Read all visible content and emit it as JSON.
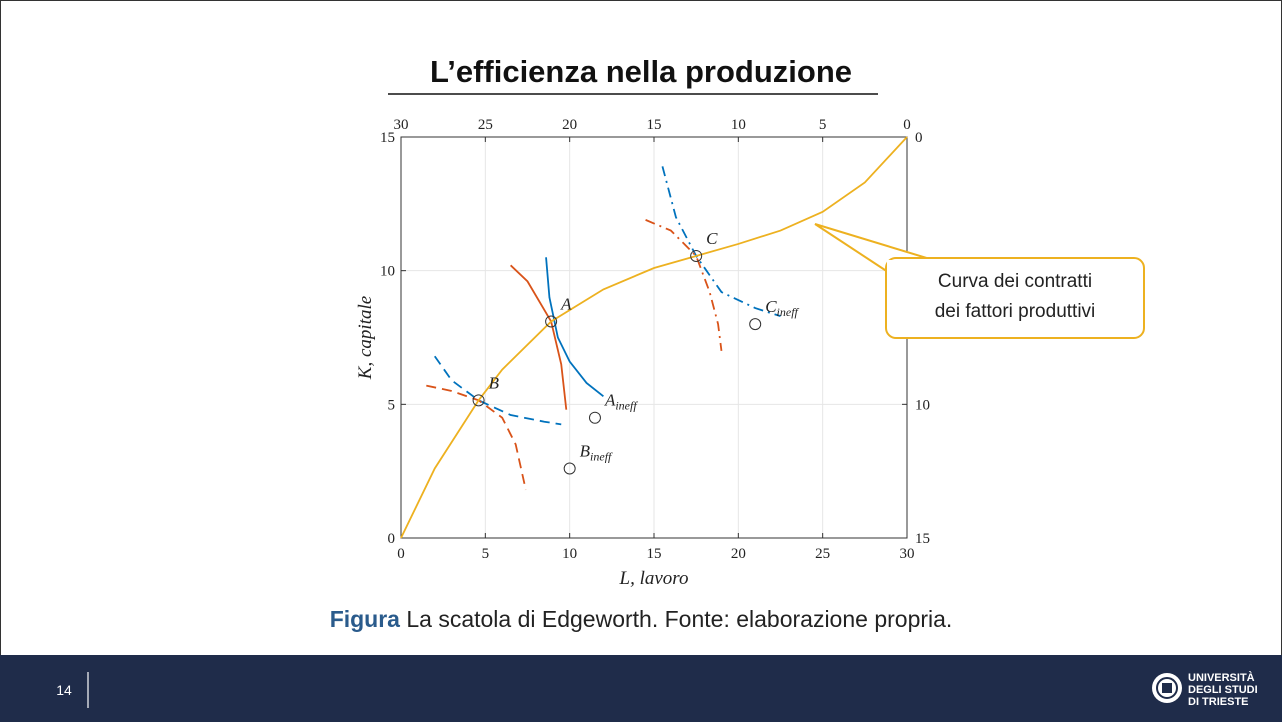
{
  "title": "L’efficienza nella produzione",
  "chart_data": {
    "type": "edgeworth",
    "xlabel": "L, lavoro",
    "ylabel": "K, capitale",
    "xlim": [
      0,
      30
    ],
    "xticks": [
      0,
      5,
      10,
      15,
      20,
      25,
      30
    ],
    "ylim": [
      0,
      15
    ],
    "yticks": [
      0,
      5,
      10,
      15
    ],
    "x2lim": [
      30,
      0
    ],
    "x2ticks": [
      30,
      25,
      20,
      15,
      10,
      5,
      0
    ],
    "y2lim": [
      15,
      0
    ],
    "y2ticks": [
      0,
      5,
      10,
      15
    ],
    "grid": true,
    "contract_curve": {
      "color": "#EDB120",
      "x": [
        0,
        2,
        4.6,
        6,
        8.9,
        12,
        15,
        17.5,
        20,
        22.5,
        25,
        27.5,
        30
      ],
      "y": [
        0,
        2.6,
        5.15,
        6.3,
        8.1,
        9.3,
        10.1,
        10.55,
        11.0,
        11.5,
        12.2,
        13.3,
        15
      ]
    },
    "curves": [
      {
        "color": "#0072BD",
        "dash": "solid",
        "x": [
          8.6,
          8.8,
          9.3,
          10,
          11,
          12
        ],
        "y": [
          10.5,
          9,
          7.5,
          6.6,
          5.8,
          5.3
        ]
      },
      {
        "color": "#D95319",
        "dash": "solid",
        "x": [
          6.5,
          7.5,
          8.9,
          9.5,
          9.8
        ],
        "y": [
          10.2,
          9.6,
          8.1,
          6.5,
          4.8
        ]
      },
      {
        "color": "#0072BD",
        "dash": "dashed",
        "x": [
          2,
          3,
          4.6,
          6.5,
          8.5,
          9.5
        ],
        "y": [
          6.8,
          5.9,
          5.15,
          4.6,
          4.35,
          4.25
        ]
      },
      {
        "color": "#D95319",
        "dash": "dashed",
        "x": [
          1.5,
          3,
          4.6,
          6,
          6.8,
          7.4
        ],
        "y": [
          5.7,
          5.5,
          5.15,
          4.5,
          3.5,
          1.8
        ]
      },
      {
        "color": "#0072BD",
        "dash": "dashdot",
        "x": [
          15.5,
          16.3,
          17.5,
          19,
          21,
          22.5
        ],
        "y": [
          13.9,
          12,
          10.55,
          9.2,
          8.6,
          8.3
        ]
      },
      {
        "color": "#D95319",
        "dash": "dashdot",
        "x": [
          14.5,
          16,
          17.5,
          18.3,
          18.8,
          19
        ],
        "y": [
          11.9,
          11.5,
          10.55,
          9.2,
          8,
          7
        ]
      }
    ],
    "points": [
      {
        "label": "A",
        "x": 8.9,
        "y": 8.1
      },
      {
        "label": "B",
        "x": 4.6,
        "y": 5.15
      },
      {
        "label": "C",
        "x": 17.5,
        "y": 10.55
      },
      {
        "label": "A",
        "sub": "ineff",
        "x": 11.5,
        "y": 4.5
      },
      {
        "label": "B",
        "sub": "ineff",
        "x": 10,
        "y": 2.6
      },
      {
        "label": "C",
        "sub": "ineff",
        "x": 21,
        "y": 8
      }
    ],
    "callout": [
      "Curva dei contratti",
      "dei fattori produttivi"
    ]
  },
  "caption": {
    "lead": "Figura",
    "text": " La scatola di Edgeworth. Fonte: elaborazione propria."
  },
  "footer": {
    "page": "14",
    "university": [
      "UNIVERSITÀ",
      "DEGLI STUDI",
      "DI TRIESTE"
    ]
  }
}
